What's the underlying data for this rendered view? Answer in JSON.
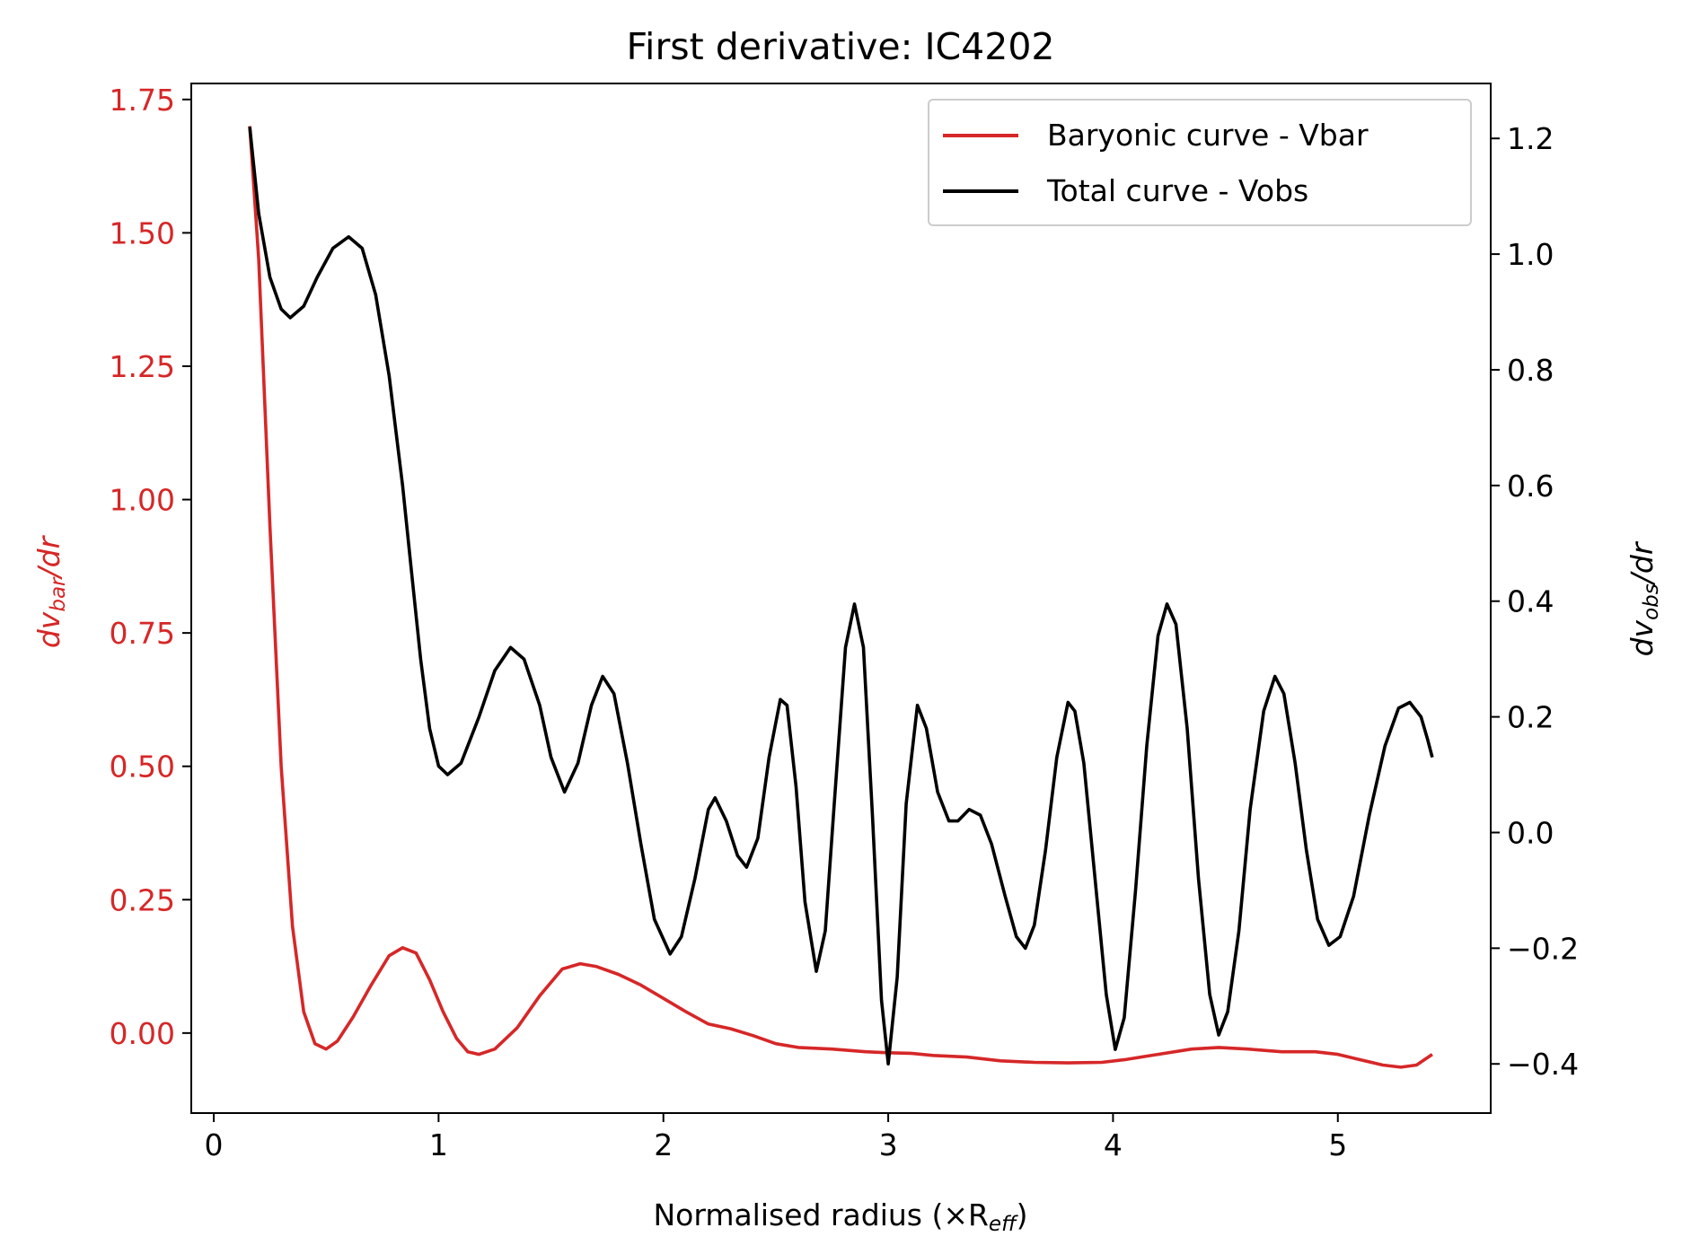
{
  "chart_data": {
    "type": "line",
    "title": "First derivative: IC4202",
    "xlabel": "Normalised radius (×R",
    "xlabel_sub": "eff",
    "xlabel_close": ")",
    "xlim": [
      -0.1,
      5.68
    ],
    "x_ticks": [
      0,
      1,
      2,
      3,
      4,
      5
    ],
    "x_tick_labels": [
      "0",
      "1",
      "2",
      "3",
      "4",
      "5"
    ],
    "y_left": {
      "label_main": "dv",
      "label_sub": "bar",
      "label_tail": "/dr",
      "color": "#d62728",
      "ylim": [
        -0.15,
        1.78
      ],
      "ticks": [
        0.0,
        0.25,
        0.5,
        0.75,
        1.0,
        1.25,
        1.5,
        1.75
      ],
      "tick_labels": [
        "0.00",
        "0.25",
        "0.50",
        "0.75",
        "1.00",
        "1.25",
        "1.50",
        "1.75"
      ]
    },
    "y_right": {
      "label_main": "dv",
      "label_sub": "obs",
      "label_tail": "/dr",
      "color": "#000000",
      "ylim": [
        -0.485,
        1.295
      ],
      "ticks": [
        -0.4,
        -0.2,
        0.0,
        0.2,
        0.4,
        0.6,
        0.8,
        1.0,
        1.2
      ],
      "tick_labels": [
        "−0.4",
        "−0.2",
        "0.0",
        "0.2",
        "0.4",
        "0.6",
        "0.8",
        "1.0",
        "1.2"
      ]
    },
    "legend_position": "top-right",
    "grid": false,
    "series": [
      {
        "name": "Baryonic curve - Vbar",
        "axis": "left",
        "color": "#d62728",
        "points": [
          [
            0.16,
            1.7
          ],
          [
            0.2,
            1.45
          ],
          [
            0.25,
            0.95
          ],
          [
            0.3,
            0.5
          ],
          [
            0.35,
            0.2
          ],
          [
            0.4,
            0.04
          ],
          [
            0.45,
            -0.02
          ],
          [
            0.5,
            -0.03
          ],
          [
            0.55,
            -0.015
          ],
          [
            0.62,
            0.03
          ],
          [
            0.7,
            0.09
          ],
          [
            0.78,
            0.145
          ],
          [
            0.84,
            0.16
          ],
          [
            0.9,
            0.15
          ],
          [
            0.96,
            0.1
          ],
          [
            1.02,
            0.04
          ],
          [
            1.08,
            -0.01
          ],
          [
            1.13,
            -0.035
          ],
          [
            1.18,
            -0.04
          ],
          [
            1.25,
            -0.03
          ],
          [
            1.35,
            0.01
          ],
          [
            1.45,
            0.07
          ],
          [
            1.55,
            0.12
          ],
          [
            1.63,
            0.13
          ],
          [
            1.7,
            0.125
          ],
          [
            1.8,
            0.11
          ],
          [
            1.9,
            0.09
          ],
          [
            2.0,
            0.065
          ],
          [
            2.1,
            0.04
          ],
          [
            2.2,
            0.017
          ],
          [
            2.3,
            0.008
          ],
          [
            2.4,
            -0.005
          ],
          [
            2.5,
            -0.02
          ],
          [
            2.6,
            -0.027
          ],
          [
            2.75,
            -0.03
          ],
          [
            2.9,
            -0.035
          ],
          [
            3.0,
            -0.037
          ],
          [
            3.1,
            -0.038
          ],
          [
            3.2,
            -0.042
          ],
          [
            3.35,
            -0.045
          ],
          [
            3.5,
            -0.052
          ],
          [
            3.65,
            -0.055
          ],
          [
            3.8,
            -0.056
          ],
          [
            3.95,
            -0.055
          ],
          [
            4.05,
            -0.05
          ],
          [
            4.2,
            -0.04
          ],
          [
            4.35,
            -0.03
          ],
          [
            4.47,
            -0.027
          ],
          [
            4.6,
            -0.03
          ],
          [
            4.75,
            -0.035
          ],
          [
            4.9,
            -0.035
          ],
          [
            5.0,
            -0.04
          ],
          [
            5.1,
            -0.05
          ],
          [
            5.2,
            -0.06
          ],
          [
            5.28,
            -0.064
          ],
          [
            5.35,
            -0.06
          ],
          [
            5.42,
            -0.04
          ]
        ]
      },
      {
        "name": "Total curve - Vobs",
        "axis": "right",
        "color": "#000000",
        "points": [
          [
            0.16,
            1.22
          ],
          [
            0.2,
            1.07
          ],
          [
            0.25,
            0.96
          ],
          [
            0.3,
            0.905
          ],
          [
            0.34,
            0.89
          ],
          [
            0.4,
            0.91
          ],
          [
            0.46,
            0.96
          ],
          [
            0.53,
            1.01
          ],
          [
            0.6,
            1.03
          ],
          [
            0.66,
            1.01
          ],
          [
            0.72,
            0.93
          ],
          [
            0.78,
            0.79
          ],
          [
            0.84,
            0.6
          ],
          [
            0.88,
            0.45
          ],
          [
            0.92,
            0.3
          ],
          [
            0.96,
            0.18
          ],
          [
            1.0,
            0.115
          ],
          [
            1.04,
            0.1
          ],
          [
            1.1,
            0.12
          ],
          [
            1.18,
            0.2
          ],
          [
            1.25,
            0.28
          ],
          [
            1.32,
            0.32
          ],
          [
            1.38,
            0.3
          ],
          [
            1.45,
            0.22
          ],
          [
            1.5,
            0.13
          ],
          [
            1.56,
            0.07
          ],
          [
            1.62,
            0.12
          ],
          [
            1.68,
            0.22
          ],
          [
            1.73,
            0.27
          ],
          [
            1.78,
            0.24
          ],
          [
            1.84,
            0.12
          ],
          [
            1.9,
            -0.02
          ],
          [
            1.96,
            -0.15
          ],
          [
            2.03,
            -0.21
          ],
          [
            2.08,
            -0.18
          ],
          [
            2.14,
            -0.08
          ],
          [
            2.2,
            0.04
          ],
          [
            2.23,
            0.06
          ],
          [
            2.28,
            0.02
          ],
          [
            2.33,
            -0.04
          ],
          [
            2.37,
            -0.06
          ],
          [
            2.42,
            -0.01
          ],
          [
            2.47,
            0.13
          ],
          [
            2.52,
            0.23
          ],
          [
            2.55,
            0.22
          ],
          [
            2.59,
            0.08
          ],
          [
            2.63,
            -0.12
          ],
          [
            2.68,
            -0.24
          ],
          [
            2.72,
            -0.17
          ],
          [
            2.76,
            0.05
          ],
          [
            2.81,
            0.32
          ],
          [
            2.85,
            0.395
          ],
          [
            2.89,
            0.32
          ],
          [
            2.93,
            0.03
          ],
          [
            2.97,
            -0.29
          ],
          [
            3.0,
            -0.4
          ],
          [
            3.04,
            -0.25
          ],
          [
            3.08,
            0.05
          ],
          [
            3.13,
            0.22
          ],
          [
            3.17,
            0.18
          ],
          [
            3.22,
            0.07
          ],
          [
            3.27,
            0.02
          ],
          [
            3.31,
            0.02
          ],
          [
            3.36,
            0.04
          ],
          [
            3.41,
            0.03
          ],
          [
            3.46,
            -0.02
          ],
          [
            3.52,
            -0.11
          ],
          [
            3.57,
            -0.18
          ],
          [
            3.61,
            -0.2
          ],
          [
            3.65,
            -0.16
          ],
          [
            3.7,
            -0.03
          ],
          [
            3.75,
            0.13
          ],
          [
            3.8,
            0.225
          ],
          [
            3.83,
            0.21
          ],
          [
            3.87,
            0.12
          ],
          [
            3.92,
            -0.08
          ],
          [
            3.97,
            -0.28
          ],
          [
            4.01,
            -0.375
          ],
          [
            4.05,
            -0.32
          ],
          [
            4.1,
            -0.1
          ],
          [
            4.15,
            0.15
          ],
          [
            4.2,
            0.34
          ],
          [
            4.24,
            0.395
          ],
          [
            4.28,
            0.36
          ],
          [
            4.33,
            0.18
          ],
          [
            4.38,
            -0.08
          ],
          [
            4.43,
            -0.28
          ],
          [
            4.47,
            -0.35
          ],
          [
            4.51,
            -0.31
          ],
          [
            4.56,
            -0.17
          ],
          [
            4.61,
            0.04
          ],
          [
            4.67,
            0.21
          ],
          [
            4.72,
            0.27
          ],
          [
            4.76,
            0.24
          ],
          [
            4.81,
            0.12
          ],
          [
            4.86,
            -0.03
          ],
          [
            4.91,
            -0.15
          ],
          [
            4.96,
            -0.195
          ],
          [
            5.01,
            -0.18
          ],
          [
            5.07,
            -0.11
          ],
          [
            5.14,
            0.03
          ],
          [
            5.21,
            0.15
          ],
          [
            5.27,
            0.215
          ],
          [
            5.32,
            0.225
          ],
          [
            5.37,
            0.2
          ],
          [
            5.4,
            0.16
          ],
          [
            5.42,
            0.13
          ]
        ]
      }
    ]
  }
}
